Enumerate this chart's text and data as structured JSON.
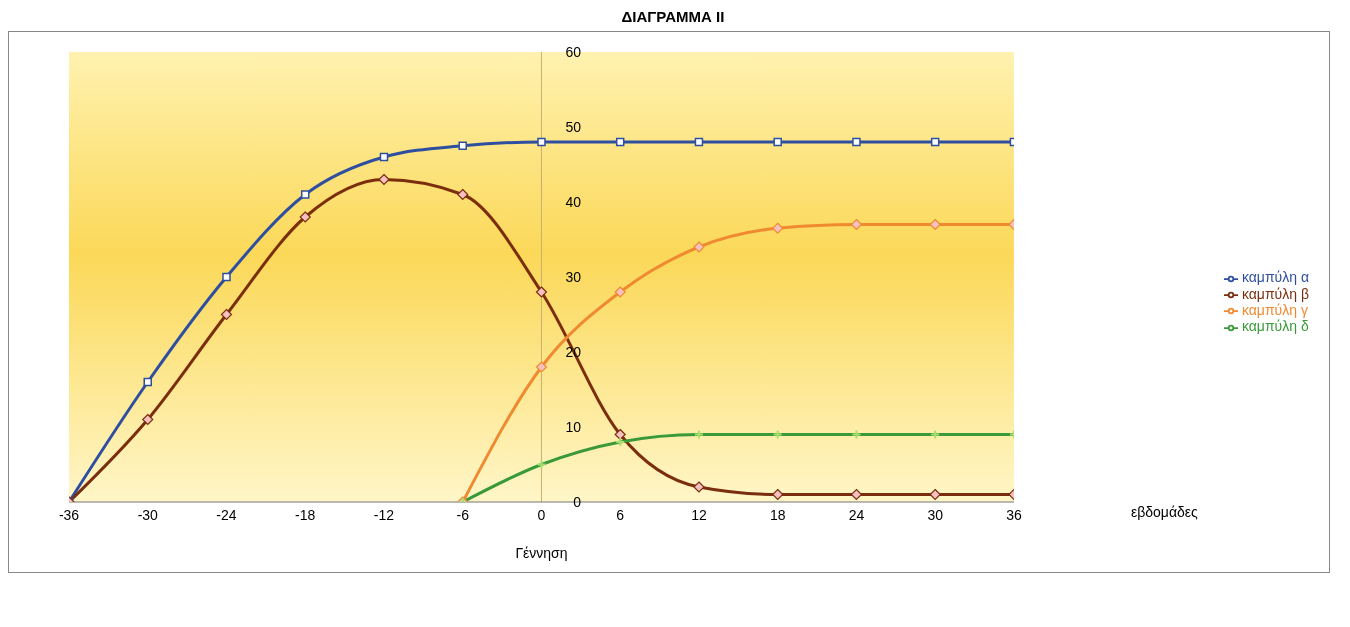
{
  "chart_data": {
    "type": "line",
    "title": "ΔΙΑΓΡΑΜΜΑ ΙΙ",
    "xlabel": "Γέννηση",
    "annotations": [
      "εβδομάδες"
    ],
    "x": [
      -36,
      -30,
      -24,
      -18,
      -12,
      -6,
      0,
      6,
      12,
      18,
      24,
      30,
      36
    ],
    "xlim": [
      -36,
      36
    ],
    "xticks": [
      -36,
      -30,
      -24,
      -18,
      -12,
      -6,
      0,
      6,
      12,
      18,
      24,
      30,
      36
    ],
    "ylim": [
      0,
      60
    ],
    "yticks": [
      0,
      10,
      20,
      30,
      40,
      50,
      60
    ],
    "grid": false,
    "legend": "right",
    "series": [
      {
        "name": "καμπύλη α",
        "color": "#2e4fa0",
        "marker": "square",
        "values": [
          0,
          16,
          30,
          41,
          46,
          47.5,
          48,
          48,
          48,
          48,
          48,
          48,
          48
        ]
      },
      {
        "name": "καμπύλη β",
        "color": "#7a2e0e",
        "marker": "diamond",
        "values": [
          0,
          11,
          25,
          38,
          43,
          41,
          28,
          9,
          2,
          1,
          1,
          1,
          1
        ]
      },
      {
        "name": "καμπύλη γ",
        "color": "#f08a30",
        "marker": "diamond",
        "values": [
          null,
          null,
          null,
          null,
          null,
          0,
          18,
          28,
          34,
          36.5,
          37,
          37,
          37
        ]
      },
      {
        "name": "καμπύλη δ",
        "color": "#3a9a3a",
        "marker": "cross",
        "values": [
          null,
          null,
          null,
          null,
          null,
          0,
          5,
          8,
          9,
          9,
          9,
          9,
          9
        ]
      }
    ]
  }
}
